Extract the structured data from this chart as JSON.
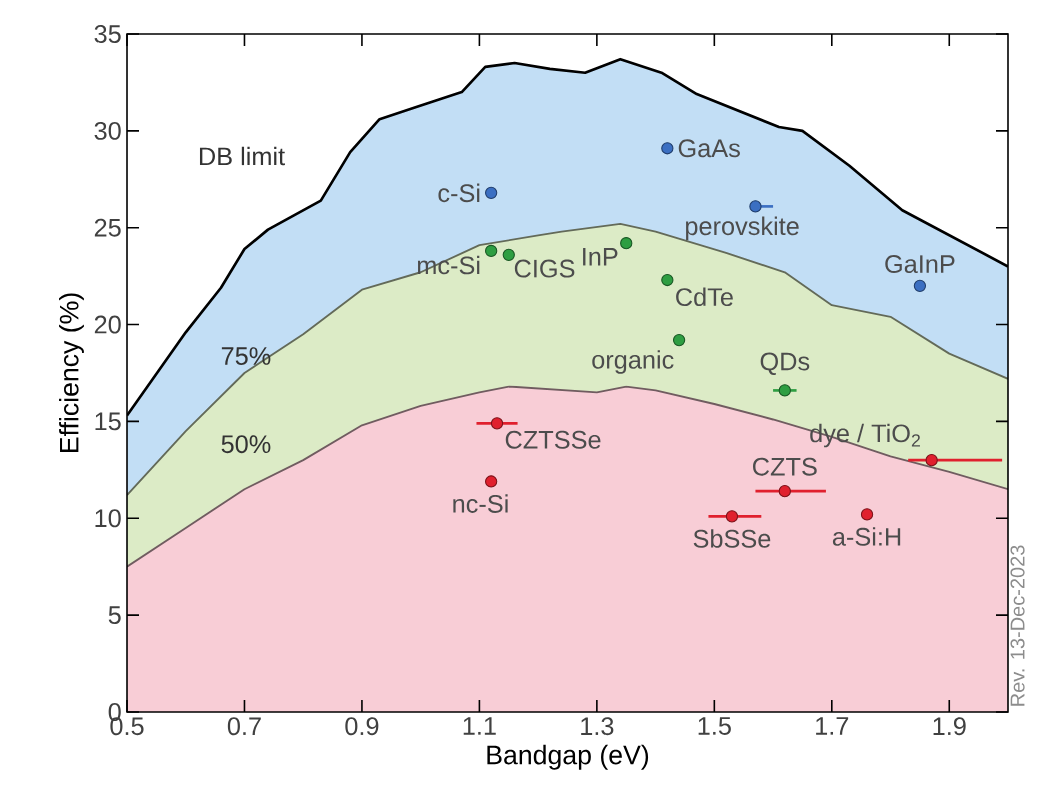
{
  "chart_data": {
    "type": "scatter",
    "xlabel": "Bandgap (eV)",
    "ylabel": "Efficiency (%)",
    "xlim": [
      0.5,
      2.0
    ],
    "ylim": [
      0,
      35
    ],
    "xticks": [
      0.5,
      0.7,
      0.9,
      1.1,
      1.3,
      1.5,
      1.7,
      1.9
    ],
    "yticks": [
      0,
      5,
      10,
      15,
      20,
      25,
      30,
      35
    ],
    "grid": false,
    "series": [
      {
        "name": "DB limit",
        "type": "area",
        "color": "#c2def5",
        "x": [
          0.5,
          0.6,
          0.66,
          0.7,
          0.74,
          0.83,
          0.88,
          0.93,
          0.99,
          1.07,
          1.11,
          1.16,
          1.22,
          1.28,
          1.34,
          1.41,
          1.47,
          1.61,
          1.65,
          1.73,
          1.82,
          2.0
        ],
        "values": [
          15.3,
          19.6,
          21.9,
          23.9,
          24.9,
          26.4,
          28.9,
          30.6,
          31.2,
          32.0,
          33.3,
          33.5,
          33.2,
          33.0,
          33.7,
          33.0,
          31.9,
          30.2,
          30.0,
          28.2,
          25.9,
          23.0
        ]
      },
      {
        "name": "75%",
        "type": "area",
        "color": "#dcebc6",
        "x": [
          0.5,
          0.6,
          0.7,
          0.8,
          0.9,
          1.0,
          1.1,
          1.2,
          1.24,
          1.34,
          1.4,
          1.52,
          1.62,
          1.7,
          1.8,
          1.9,
          2.0
        ],
        "values": [
          11.2,
          14.5,
          17.5,
          19.5,
          21.8,
          22.7,
          24.1,
          24.6,
          24.8,
          25.2,
          24.8,
          23.7,
          22.7,
          21.0,
          20.4,
          18.5,
          17.2
        ]
      },
      {
        "name": "50%",
        "type": "area",
        "color": "#f8cdd6",
        "x": [
          0.5,
          0.6,
          0.7,
          0.8,
          0.9,
          1.0,
          1.1,
          1.15,
          1.3,
          1.35,
          1.4,
          1.5,
          1.6,
          1.7,
          1.8,
          1.9,
          2.0
        ],
        "values": [
          7.5,
          9.5,
          11.5,
          13.0,
          14.8,
          15.8,
          16.5,
          16.8,
          16.5,
          16.8,
          16.6,
          15.9,
          15.1,
          14.2,
          13.2,
          12.4,
          11.5
        ]
      },
      {
        "color": "#3b6fc2",
        "x": [
          1.12,
          1.42,
          1.57,
          1.85
        ],
        "values": [
          26.8,
          29.1,
          26.1,
          22.0
        ],
        "xerrors": [
          null,
          null,
          [
            1.57,
            1.6
          ],
          null
        ]
      },
      {
        "color": "#2e9e42",
        "x": [
          1.12,
          1.15,
          1.35,
          1.42,
          1.44,
          1.62
        ],
        "values": [
          23.8,
          23.6,
          24.2,
          22.3,
          19.2,
          16.6
        ],
        "xerrors": [
          null,
          null,
          null,
          null,
          null,
          0.02
        ]
      },
      {
        "color": "#e0202e",
        "x": [
          1.13,
          1.12,
          1.87,
          1.62,
          1.53,
          1.76
        ],
        "values": [
          14.9,
          11.9,
          13.0,
          11.4,
          10.1,
          10.2
        ],
        "xerrors": [
          0.035,
          null,
          [
            1.83,
            1.99
          ],
          [
            1.57,
            1.69
          ],
          [
            1.49,
            1.58
          ],
          null
        ]
      }
    ],
    "annotations": [
      {
        "text": "c-Si",
        "x": 1.12,
        "y": 26.8
      },
      {
        "text": "GaAs",
        "x": 1.42,
        "y": 29.1
      },
      {
        "text": "perovskite",
        "x": 1.57,
        "y": 26.1
      },
      {
        "text": "GaInP",
        "x": 1.85,
        "y": 22.0
      },
      {
        "text": "mc-Si",
        "x": 1.12,
        "y": 23.8
      },
      {
        "text": "CIGS",
        "x": 1.15,
        "y": 23.6
      },
      {
        "text": "InP",
        "x": 1.35,
        "y": 24.2
      },
      {
        "text": "CdTe",
        "x": 1.42,
        "y": 22.3
      },
      {
        "text": "organic",
        "x": 1.44,
        "y": 19.2
      },
      {
        "text": "QDs",
        "x": 1.62,
        "y": 16.6
      },
      {
        "text": "CZTSSe",
        "x": 1.13,
        "y": 14.9
      },
      {
        "text": "nc-Si",
        "x": 1.12,
        "y": 11.9
      },
      {
        "text": "dye / TiO$_{2}$",
        "x": 1.87,
        "y": 13.0
      },
      {
        "text": "CZTS",
        "x": 1.62,
        "y": 11.4
      },
      {
        "text": "SbSSe",
        "x": 1.53,
        "y": 10.1
      },
      {
        "text": "a-Si:H",
        "x": 1.76,
        "y": 10.2
      },
      "Rev. 13-Dec-2023"
    ]
  }
}
